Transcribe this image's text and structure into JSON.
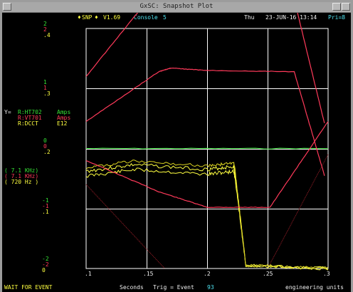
{
  "window": {
    "title": "GxSC: Snapshot Plot"
  },
  "header": {
    "prefix_mark": "♦",
    "app_name": "SNP",
    "suffix_mark": "♦",
    "version": "V1.69",
    "console_label": "Console",
    "console_number": "5",
    "day": "Thu",
    "date_time": "23-JUN-16 13:14",
    "priority": "Pri=8"
  },
  "left_axis": {
    "group1": [
      "2",
      "2",
      ".4"
    ],
    "group2": [
      "1",
      "1",
      ".3"
    ],
    "group3": [
      "0",
      "0",
      ".2"
    ],
    "group4": [
      "-1",
      "-1",
      ".1"
    ],
    "group5": [
      "-2",
      "-2",
      "0"
    ]
  },
  "legend": {
    "axis_prefix": "Y=",
    "channels": [
      {
        "name": "R:HT702",
        "unit": "Amps"
      },
      {
        "name": "R:VT701",
        "unit": "Amps"
      },
      {
        "name": "R:DCCT",
        "unit": "E12"
      }
    ],
    "filters": [
      "( 7.1 KHz)",
      "( 7.1 KHz)",
      "( 720 Hz )"
    ]
  },
  "x_axis": {
    "ticks": [
      ".1",
      ".15",
      ".2",
      ".25",
      ".3"
    ],
    "label": "Seconds"
  },
  "footer": {
    "status": "WAIT FOR EVENT",
    "seconds_label": "Seconds",
    "trigger_label": "Trig = Event",
    "trigger_event": "93",
    "units": "engineering units"
  },
  "colors": {
    "background": "#000000",
    "grid": "#ffffff",
    "trace_ht702": "#ff3a5a",
    "trace_vt701": "#ff3a5a",
    "trace_dcct": "#ffff40",
    "trace_green": "#36e236",
    "trace_faint": "#a0202a"
  },
  "chart_data": {
    "type": "line",
    "x_range": [
      0.1,
      0.3
    ],
    "grid": true,
    "series": [
      {
        "name": "R:HT702",
        "axis": "group1",
        "x": [
          0.1,
          0.16,
          0.17,
          0.2,
          0.27,
          0.297
        ],
        "y": [
          1.2,
          2.7,
          2.72,
          2.7,
          2.65,
          0.42
        ]
      },
      {
        "name": "R:VT701",
        "axis": "group2",
        "x": [
          0.1,
          0.16,
          0.17,
          0.2,
          0.272,
          0.297
        ],
        "y": [
          0.45,
          1.28,
          1.34,
          1.3,
          1.28,
          -0.45
        ]
      },
      {
        "name": "R:DCCT",
        "axis": "group3",
        "x": [
          0.1,
          0.14,
          0.2,
          0.222,
          0.223,
          0.232,
          0.3
        ],
        "y": [
          0.162,
          0.173,
          0.165,
          0.17,
          0.16,
          0.005,
          0.0
        ]
      }
    ]
  }
}
